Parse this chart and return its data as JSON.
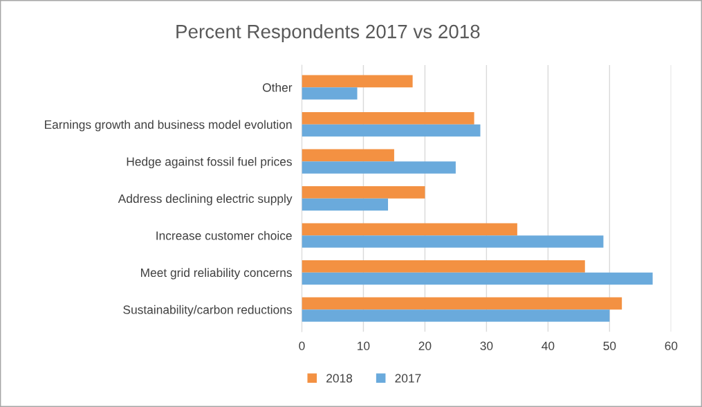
{
  "chart_data": {
    "type": "bar",
    "orientation": "horizontal",
    "title": "Percent Respondents 2017 vs 2018",
    "categories": [
      "Other",
      "Earnings growth and business model evolution",
      "Hedge against fossil fuel prices",
      "Address declining electric supply",
      "Increase customer choice",
      "Meet grid reliability concerns",
      "Sustainability/carbon reductions"
    ],
    "series": [
      {
        "name": "2018",
        "color": "#f39142",
        "values": [
          18,
          28,
          15,
          20,
          35,
          46,
          52
        ]
      },
      {
        "name": "2017",
        "color": "#6aaadc",
        "values": [
          9,
          29,
          25,
          14,
          49,
          57,
          50
        ]
      }
    ],
    "xlim": [
      0,
      60
    ],
    "xticks": [
      0,
      10,
      20,
      30,
      40,
      50,
      60
    ],
    "grid": "x",
    "legend": "bottom"
  }
}
